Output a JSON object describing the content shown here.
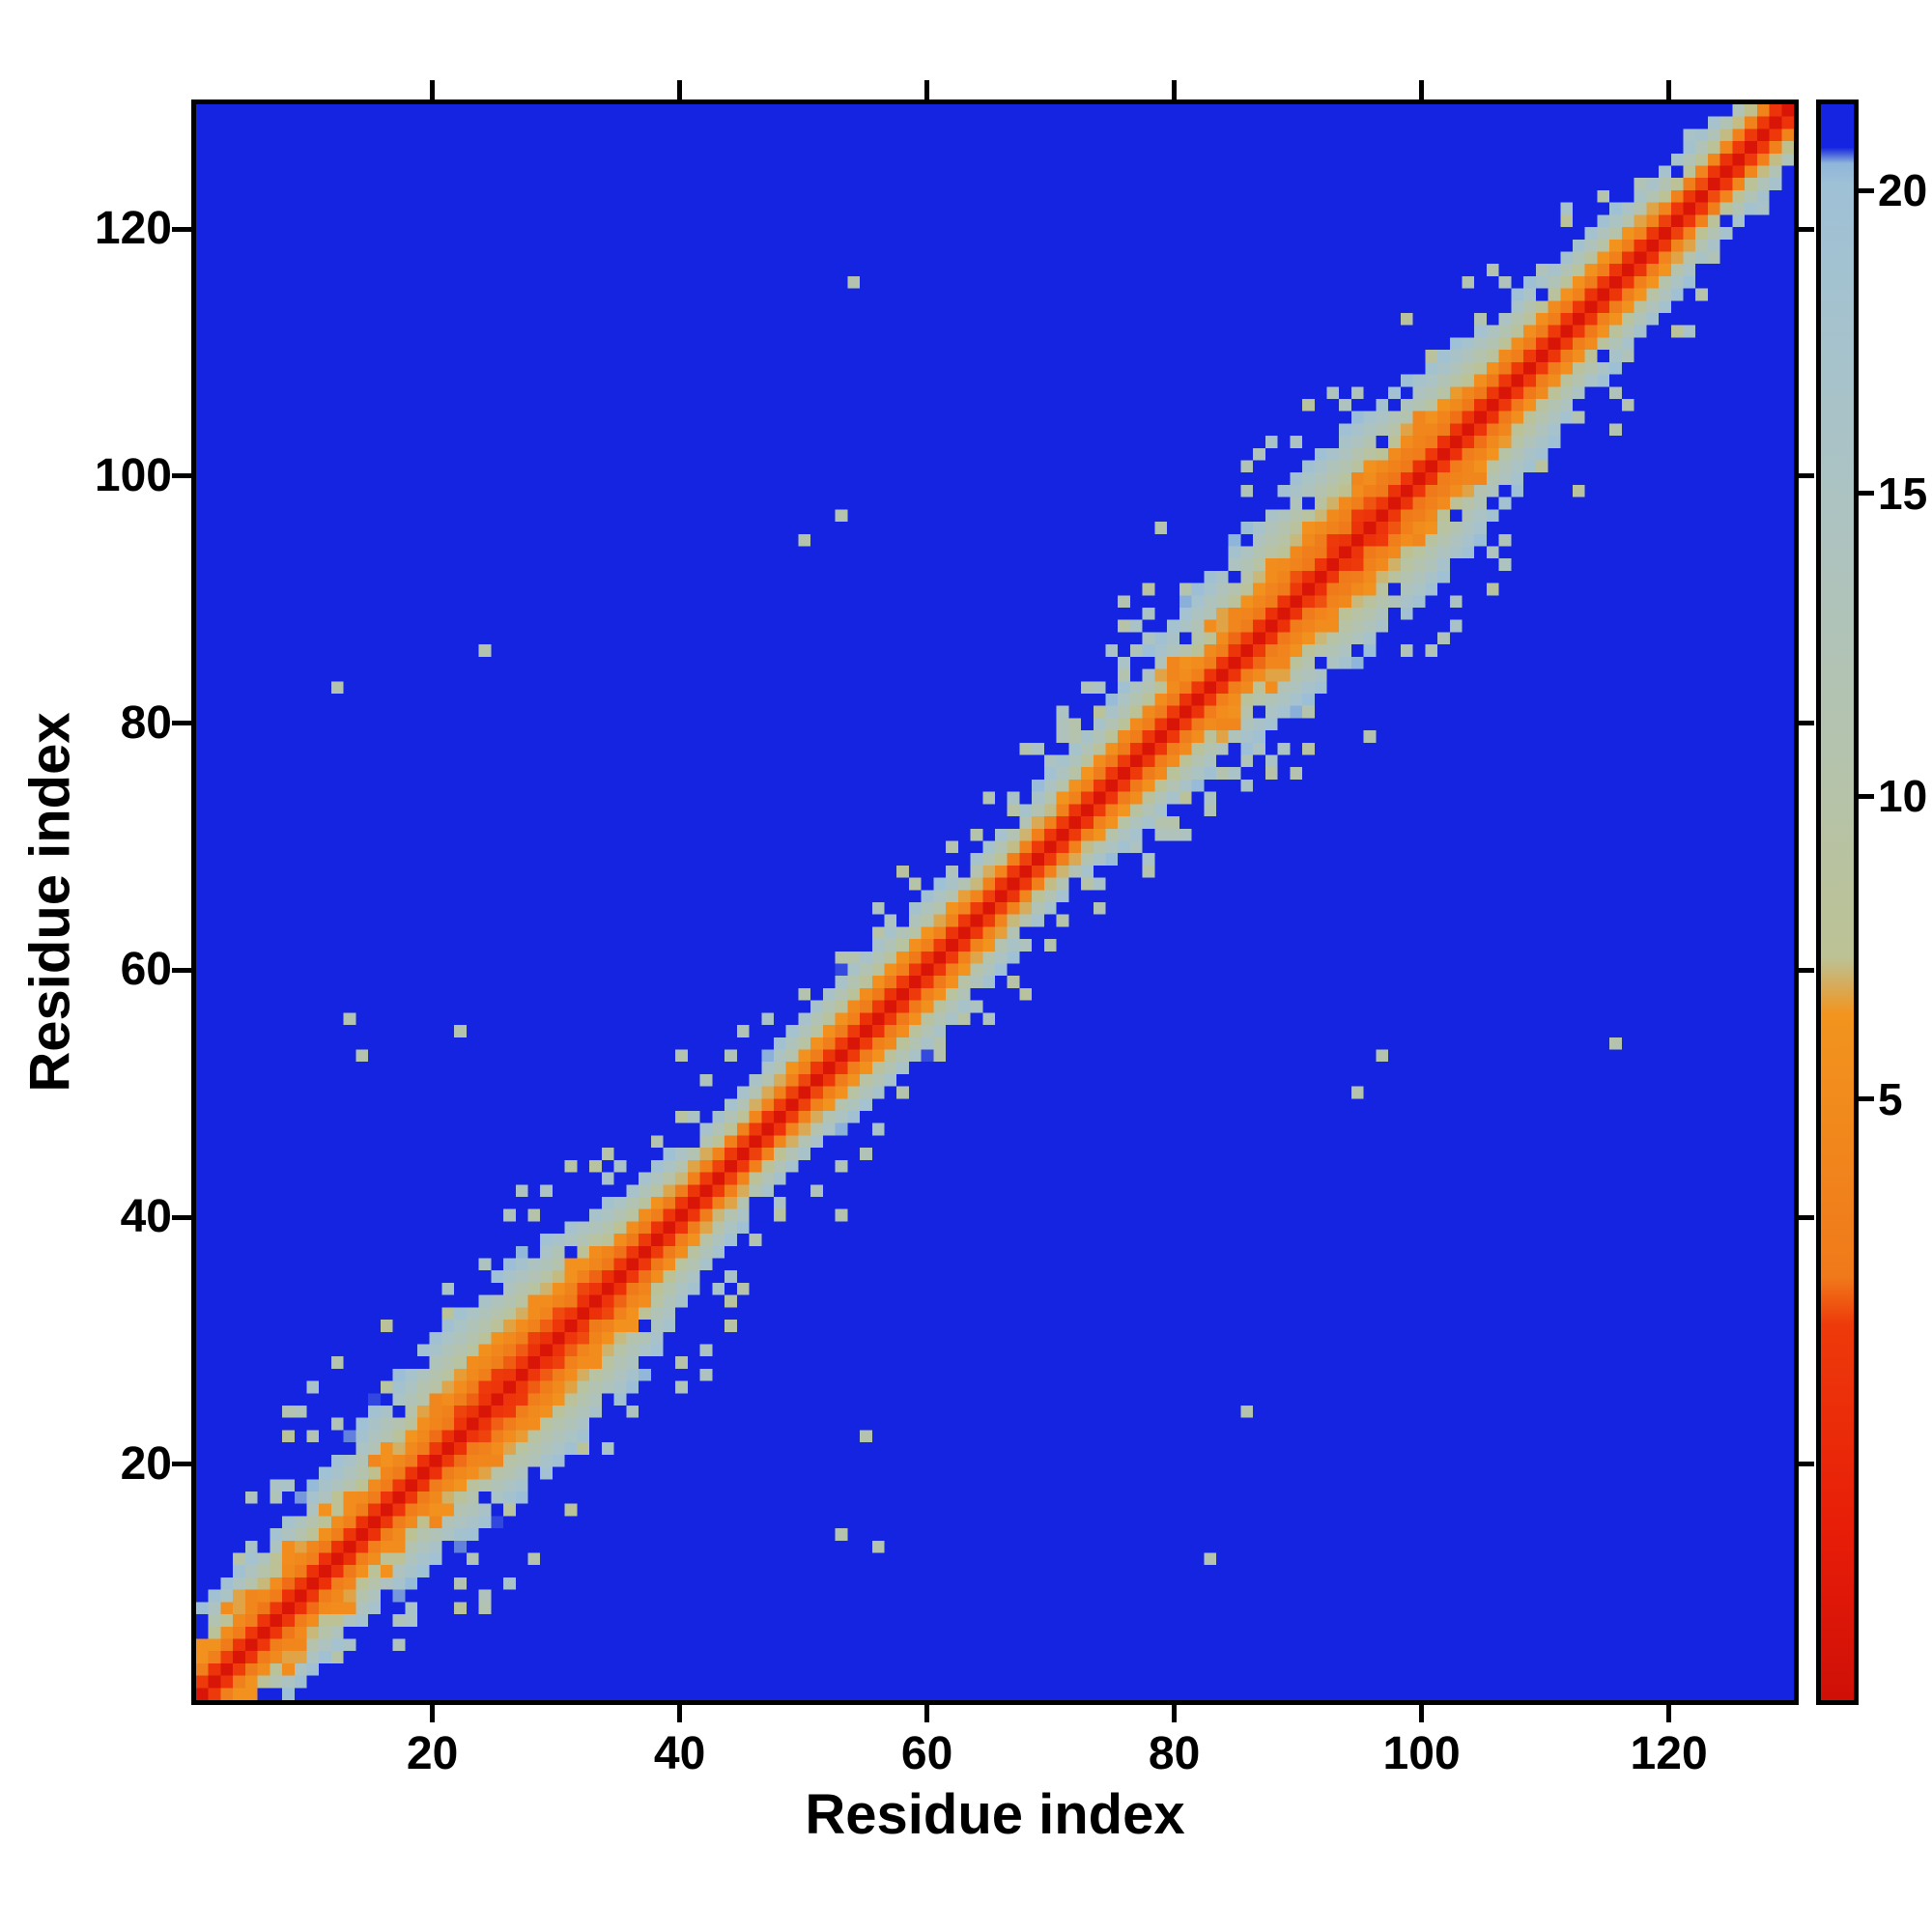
{
  "chart_data": {
    "type": "heatmap",
    "title": "",
    "xlabel": "Residue index",
    "ylabel": "Residue index",
    "n_residues": 130,
    "axis_range": [
      1,
      130
    ],
    "x_ticks": [
      20,
      40,
      60,
      80,
      100,
      120
    ],
    "y_ticks": [
      20,
      40,
      60,
      80,
      100,
      120
    ],
    "grid": false,
    "frame_color": "#000000",
    "background_color": "#ffffff",
    "description": "Symmetric residue-residue distance/contact matrix. Bright red band along the main diagonal (shortest distances), fringed by orange, sage-green and light steel-blue shells; solid blue background for distant pairs. Wider elliptical bulges of close contacts around residues ~15-40 and ~85-105, with periodic orange spots at sequence offsets 3-5 (helical contacts) and scattered speckles at the band edges.",
    "colorbar": {
      "orientation": "vertical",
      "position": "right",
      "ticks": [
        5,
        10,
        15,
        20
      ],
      "tick_labels": [
        "5",
        "10",
        "15",
        "20"
      ],
      "value_range": [
        -5,
        21.5
      ]
    },
    "colormap": {
      "name": "red-orange-sage-steel-blue",
      "stops": [
        [
          0.0,
          "#cf1007"
        ],
        [
          0.1,
          "#e71c08"
        ],
        [
          0.235,
          "#ee3a0a"
        ],
        [
          0.265,
          "#f0791a"
        ],
        [
          0.43,
          "#f2941e"
        ],
        [
          0.465,
          "#bcc294"
        ],
        [
          0.58,
          "#b5c3ab"
        ],
        [
          0.74,
          "#adc3c1"
        ],
        [
          0.95,
          "#9fc1d6"
        ],
        [
          0.963,
          "#8fb6da"
        ],
        [
          0.973,
          "#1424e0"
        ],
        [
          1.0,
          "#1424e0"
        ]
      ]
    },
    "matrix_model": {
      "seed": 7,
      "base_halfwidth": 5.5,
      "edge_value": 21.8,
      "blue_threshold": 20.6,
      "clusters": [
        {
          "center": 27,
          "sigma": 9,
          "amp": 1.35
        },
        {
          "center": 95,
          "sigma": 10,
          "amp": 1.25
        },
        {
          "center": 8,
          "sigma": 6,
          "amp": 0.5
        },
        {
          "center": 57,
          "sigma": 5,
          "amp": 0.45
        },
        {
          "center": 78,
          "sigma": 4,
          "amp": 0.4
        },
        {
          "center": 113,
          "sigma": 6,
          "amp": 0.3
        }
      ],
      "helix_ranges": [
        [
          1,
          38
        ],
        [
          78,
          106
        ]
      ],
      "helix_offsets": [
        3,
        4,
        5
      ]
    }
  }
}
